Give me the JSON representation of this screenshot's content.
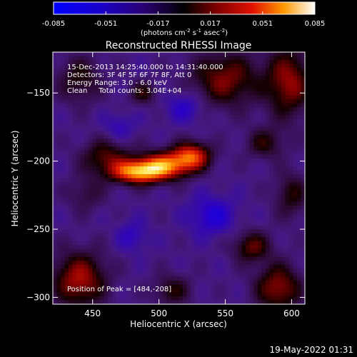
{
  "chart_data": {
    "type": "heatmap",
    "title": "Reconstructed RHESSI Image",
    "colorbar": {
      "ticks": [
        "-0.085",
        "-0.051",
        "-0.017",
        "0.017",
        "0.051",
        "0.085"
      ],
      "tick_values": [
        -0.085,
        -0.051,
        -0.017,
        0.017,
        0.051,
        0.085
      ],
      "range": [
        -0.085,
        0.085
      ],
      "label_prefix": "(photons cm",
      "label_exp1": "-2",
      "label_mid": " s",
      "label_exp2": "-1",
      "label_mid2": " asec",
      "label_exp3": "-2",
      "label_suffix": ")"
    },
    "xlabel": "Heliocentric X (arcsec)",
    "ylabel": "Heliocentric Y (arcsec)",
    "xlim": [
      420,
      610
    ],
    "ylim": [
      -305,
      -120
    ],
    "x_ticks": [
      450,
      500,
      550,
      600
    ],
    "y_ticks": [
      -150,
      -200,
      -250,
      -300
    ],
    "y_tick_labels": [
      "−150",
      "−200",
      "−250",
      "−300"
    ],
    "annotations": {
      "time": "15-Dec-2013 14:25:40.000 to 14:31:40.000",
      "detectors": "Detectors: 3F 4F 5F 6F 7F 8F, Att 0",
      "energy": "Energy Range: 3.0 - 6.0 keV",
      "clean": "Clean     Total counts: 3.04E+04",
      "peak": "Position of Peak = [484,-208]"
    },
    "peak": {
      "x": 484,
      "y": -208
    },
    "blobs": [
      {
        "x": 484,
        "y": -208,
        "sx": 14,
        "sy": 6,
        "amp": 0.085
      },
      {
        "x": 505,
        "y": -203,
        "sx": 14,
        "sy": 7,
        "amp": 0.072
      },
      {
        "x": 525,
        "y": -196,
        "sx": 10,
        "sy": 7,
        "amp": 0.066
      },
      {
        "x": 460,
        "y": -197,
        "sx": 13,
        "sy": 9,
        "amp": 0.038
      },
      {
        "x": 445,
        "y": -224,
        "sx": 10,
        "sy": 9,
        "amp": 0.02
      },
      {
        "x": 440,
        "y": -140,
        "sx": 12,
        "sy": 12,
        "amp": 0.03
      },
      {
        "x": 488,
        "y": -150,
        "sx": 7,
        "sy": 6,
        "amp": 0.03
      },
      {
        "x": 550,
        "y": -140,
        "sx": 18,
        "sy": 14,
        "amp": 0.046
      },
      {
        "x": 598,
        "y": -142,
        "sx": 12,
        "sy": 18,
        "amp": 0.05
      },
      {
        "x": 580,
        "y": -187,
        "sx": 10,
        "sy": 8,
        "amp": 0.03
      },
      {
        "x": 600,
        "y": -225,
        "sx": 9,
        "sy": 12,
        "amp": 0.03
      },
      {
        "x": 570,
        "y": -263,
        "sx": 10,
        "sy": 8,
        "amp": 0.04
      },
      {
        "x": 440,
        "y": -287,
        "sx": 14,
        "sy": 14,
        "amp": 0.055
      },
      {
        "x": 510,
        "y": -295,
        "sx": 10,
        "sy": 8,
        "amp": 0.03
      },
      {
        "x": 590,
        "y": -293,
        "sx": 12,
        "sy": 12,
        "amp": 0.05
      },
      {
        "x": 480,
        "y": -255,
        "sx": 8,
        "sy": 8,
        "amp": -0.02
      },
      {
        "x": 540,
        "y": -240,
        "sx": 12,
        "sy": 10,
        "amp": -0.03
      },
      {
        "x": 520,
        "y": -160,
        "sx": 10,
        "sy": 8,
        "amp": -0.025
      },
      {
        "x": 470,
        "y": -175,
        "sx": 8,
        "sy": 7,
        "amp": -0.018
      }
    ],
    "background": -0.03
  },
  "timestamp": "19-May-2022 01:31"
}
